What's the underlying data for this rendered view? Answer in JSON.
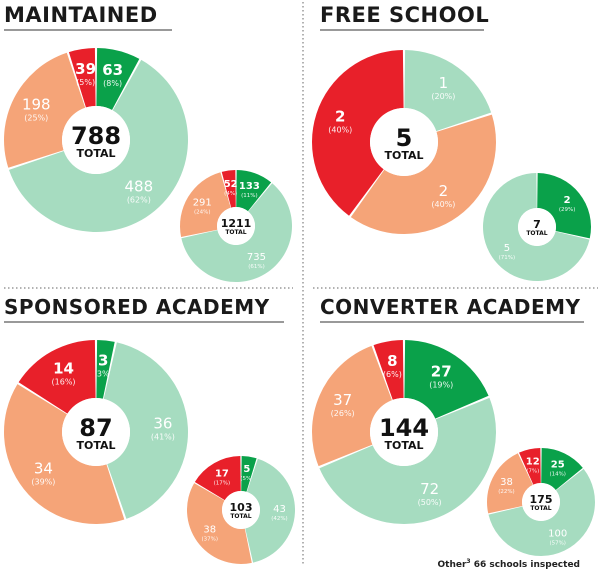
{
  "colors": {
    "outstanding": "#0aa14a",
    "good": "#a6dcc0",
    "requires_improvement": "#f5a478",
    "inadequate": "#e8202a"
  },
  "footnote": {
    "prefix": "Other",
    "superscript": "3",
    "text": " 66 schools inspected"
  },
  "chart_data": [
    {
      "type": "pie",
      "panel": "MAINTAINED",
      "title": "MAINTAINED",
      "donut": "large",
      "total": "788",
      "total_label": "TOTAL",
      "slices": [
        {
          "category": "outstanding",
          "value": 63,
          "label": "63",
          "pct": "(8%)"
        },
        {
          "category": "good",
          "value": 488,
          "label": "488",
          "pct": "(62%)"
        },
        {
          "category": "requires_improvement",
          "value": 198,
          "label": "198",
          "pct": "(25%)"
        },
        {
          "category": "inadequate",
          "value": 39,
          "label": "39",
          "pct": "(5%)"
        }
      ]
    },
    {
      "type": "pie",
      "panel": "MAINTAINED",
      "donut": "small",
      "total": "1211",
      "total_label": "TOTAL",
      "slices": [
        {
          "category": "outstanding",
          "value": 133,
          "label": "133",
          "pct": "(11%)"
        },
        {
          "category": "good",
          "value": 735,
          "label": "735",
          "pct": "(61%)"
        },
        {
          "category": "requires_improvement",
          "value": 291,
          "label": "291",
          "pct": "(24%)"
        },
        {
          "category": "inadequate",
          "value": 52,
          "label": "52",
          "pct": "(4%)"
        }
      ]
    },
    {
      "type": "pie",
      "panel": "FREE SCHOOL",
      "title": "FREE SCHOOL",
      "donut": "large",
      "total": "5",
      "total_label": "TOTAL",
      "slices": [
        {
          "category": "outstanding",
          "value": 0,
          "label": "",
          "pct": ""
        },
        {
          "category": "good",
          "value": 1,
          "label": "1",
          "pct": "(20%)"
        },
        {
          "category": "requires_improvement",
          "value": 2,
          "label": "2",
          "pct": "(40%)"
        },
        {
          "category": "inadequate",
          "value": 2,
          "label": "2",
          "pct": "(40%)"
        }
      ]
    },
    {
      "type": "pie",
      "panel": "FREE SCHOOL",
      "donut": "small",
      "total": "7",
      "total_label": "TOTAL",
      "slices": [
        {
          "category": "outstanding",
          "value": 2,
          "label": "2",
          "pct": "(29%)"
        },
        {
          "category": "good",
          "value": 5,
          "label": "5",
          "pct": "(71%)"
        },
        {
          "category": "requires_improvement",
          "value": 0,
          "label": "",
          "pct": ""
        },
        {
          "category": "inadequate",
          "value": 0,
          "label": "",
          "pct": ""
        }
      ]
    },
    {
      "type": "pie",
      "panel": "SPONSORED ACADEMY",
      "title": "SPONSORED ACADEMY",
      "donut": "large",
      "total": "87",
      "total_label": "TOTAL",
      "slices": [
        {
          "category": "outstanding",
          "value": 3,
          "label": "3",
          "pct": "(3%)"
        },
        {
          "category": "good",
          "value": 36,
          "label": "36",
          "pct": "(41%)"
        },
        {
          "category": "requires_improvement",
          "value": 34,
          "label": "34",
          "pct": "(39%)"
        },
        {
          "category": "inadequate",
          "value": 14,
          "label": "14",
          "pct": "(16%)"
        }
      ]
    },
    {
      "type": "pie",
      "panel": "SPONSORED ACADEMY",
      "donut": "small",
      "total": "103",
      "total_label": "TOTAL",
      "slices": [
        {
          "category": "outstanding",
          "value": 5,
          "label": "5",
          "pct": "(5%)"
        },
        {
          "category": "good",
          "value": 43,
          "label": "43",
          "pct": "(42%)"
        },
        {
          "category": "requires_improvement",
          "value": 38,
          "label": "38",
          "pct": "(37%)"
        },
        {
          "category": "inadequate",
          "value": 17,
          "label": "17",
          "pct": "(17%)"
        }
      ]
    },
    {
      "type": "pie",
      "panel": "CONVERTER ACADEMY",
      "title": "CONVERTER ACADEMY",
      "donut": "large",
      "total": "144",
      "total_label": "TOTAL",
      "slices": [
        {
          "category": "outstanding",
          "value": 27,
          "label": "27",
          "pct": "(19%)"
        },
        {
          "category": "good",
          "value": 72,
          "label": "72",
          "pct": "(50%)"
        },
        {
          "category": "requires_improvement",
          "value": 37,
          "label": "37",
          "pct": "(26%)"
        },
        {
          "category": "inadequate",
          "value": 8,
          "label": "8",
          "pct": "(6%)"
        }
      ]
    },
    {
      "type": "pie",
      "panel": "CONVERTER ACADEMY",
      "donut": "small",
      "total": "175",
      "total_label": "TOTAL",
      "slices": [
        {
          "category": "outstanding",
          "value": 25,
          "label": "25",
          "pct": "(14%)"
        },
        {
          "category": "good",
          "value": 100,
          "label": "100",
          "pct": "(57%)"
        },
        {
          "category": "requires_improvement",
          "value": 38,
          "label": "38",
          "pct": "(22%)"
        },
        {
          "category": "inadequate",
          "value": 12,
          "label": "12",
          "pct": "(7%)"
        }
      ]
    }
  ]
}
